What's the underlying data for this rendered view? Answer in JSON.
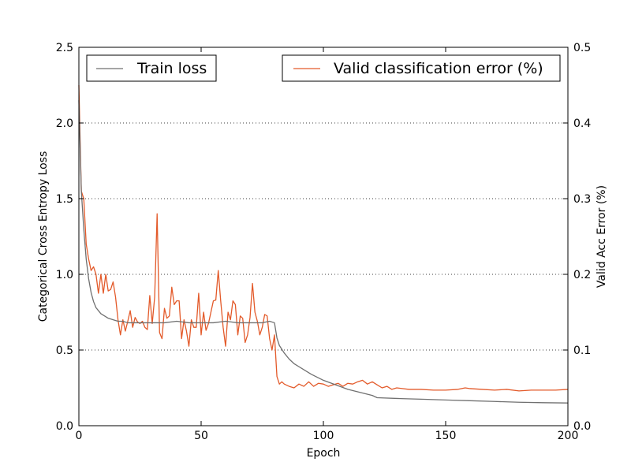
{
  "chart_data": {
    "type": "line",
    "xlabel": "Epoch",
    "ylabel_left": "Categorical Cross Entropy Loss",
    "ylabel_right": "Valid Acc Error (%)",
    "xlim": [
      0,
      200
    ],
    "ylim_left": [
      0.0,
      2.5
    ],
    "ylim_right": [
      0.0,
      0.5
    ],
    "x_ticks": [
      0,
      50,
      100,
      150,
      200
    ],
    "x_tick_labels": [
      "0",
      "50",
      "100",
      "150",
      "200"
    ],
    "y_left_ticks": [
      0.0,
      0.5,
      1.0,
      1.5,
      2.0,
      2.5
    ],
    "y_left_tick_labels": [
      "0.0",
      "0.5",
      "1.0",
      "1.5",
      "2.0",
      "2.5"
    ],
    "y_right_ticks": [
      0.0,
      0.1,
      0.2,
      0.3,
      0.4,
      0.5
    ],
    "y_right_tick_labels": [
      "0.0",
      "0.1",
      "0.2",
      "0.3",
      "0.4",
      "0.5"
    ],
    "grid": "horizontal-dotted",
    "series": [
      {
        "name": "Train loss",
        "axis": "left",
        "color": "#707070",
        "x": [
          0,
          1,
          2,
          3,
          4,
          5,
          6,
          7,
          8,
          9,
          10,
          12,
          14,
          16,
          18,
          20,
          25,
          30,
          35,
          40,
          45,
          50,
          55,
          60,
          65,
          70,
          75,
          78,
          80,
          81,
          82,
          84,
          86,
          88,
          90,
          95,
          100,
          105,
          110,
          115,
          120,
          122,
          130,
          140,
          150,
          160,
          170,
          180,
          190,
          200
        ],
        "values": [
          2.15,
          1.55,
          1.3,
          1.1,
          0.97,
          0.88,
          0.82,
          0.78,
          0.76,
          0.74,
          0.73,
          0.71,
          0.7,
          0.69,
          0.69,
          0.68,
          0.68,
          0.68,
          0.68,
          0.69,
          0.68,
          0.68,
          0.68,
          0.69,
          0.68,
          0.68,
          0.68,
          0.69,
          0.68,
          0.58,
          0.53,
          0.48,
          0.44,
          0.41,
          0.39,
          0.34,
          0.3,
          0.27,
          0.24,
          0.22,
          0.2,
          0.185,
          0.18,
          0.175,
          0.17,
          0.165,
          0.16,
          0.155,
          0.152,
          0.15
        ]
      },
      {
        "name": "Valid classification error (%)",
        "axis": "right",
        "color": "#e35a2a",
        "x": [
          0,
          1,
          2,
          3,
          4,
          5,
          6,
          7,
          8,
          9,
          10,
          11,
          12,
          13,
          14,
          15,
          16,
          17,
          18,
          19,
          20,
          21,
          22,
          23,
          24,
          25,
          26,
          27,
          28,
          29,
          30,
          31,
          32,
          33,
          34,
          35,
          36,
          37,
          38,
          39,
          40,
          41,
          42,
          43,
          44,
          45,
          46,
          47,
          48,
          49,
          50,
          51,
          52,
          53,
          54,
          55,
          56,
          57,
          58,
          59,
          60,
          61,
          62,
          63,
          64,
          65,
          66,
          67,
          68,
          69,
          70,
          71,
          72,
          73,
          74,
          75,
          76,
          77,
          78,
          79,
          80,
          81,
          82,
          83,
          84,
          86,
          88,
          90,
          92,
          94,
          96,
          98,
          100,
          102,
          104,
          106,
          108,
          110,
          112,
          114,
          116,
          118,
          120,
          122,
          124,
          126,
          128,
          130,
          135,
          140,
          145,
          150,
          155,
          158,
          160,
          165,
          170,
          175,
          180,
          185,
          190,
          195,
          200
        ],
        "values": [
          0.45,
          0.31,
          0.3,
          0.24,
          0.22,
          0.205,
          0.21,
          0.2,
          0.175,
          0.2,
          0.175,
          0.2,
          0.178,
          0.18,
          0.19,
          0.17,
          0.14,
          0.12,
          0.14,
          0.125,
          0.138,
          0.152,
          0.13,
          0.143,
          0.137,
          0.135,
          0.138,
          0.13,
          0.127,
          0.172,
          0.135,
          0.17,
          0.28,
          0.123,
          0.115,
          0.155,
          0.142,
          0.145,
          0.183,
          0.16,
          0.165,
          0.165,
          0.115,
          0.14,
          0.125,
          0.105,
          0.14,
          0.13,
          0.13,
          0.175,
          0.12,
          0.15,
          0.126,
          0.135,
          0.15,
          0.165,
          0.166,
          0.205,
          0.165,
          0.13,
          0.105,
          0.15,
          0.14,
          0.165,
          0.16,
          0.12,
          0.145,
          0.142,
          0.11,
          0.12,
          0.143,
          0.188,
          0.15,
          0.138,
          0.12,
          0.13,
          0.147,
          0.145,
          0.115,
          0.1,
          0.12,
          0.065,
          0.055,
          0.058,
          0.055,
          0.052,
          0.05,
          0.055,
          0.052,
          0.058,
          0.052,
          0.056,
          0.055,
          0.052,
          0.054,
          0.056,
          0.052,
          0.056,
          0.055,
          0.058,
          0.06,
          0.055,
          0.058,
          0.054,
          0.05,
          0.052,
          0.048,
          0.05,
          0.048,
          0.048,
          0.047,
          0.047,
          0.048,
          0.05,
          0.049,
          0.048,
          0.047,
          0.048,
          0.046,
          0.047,
          0.047,
          0.047,
          0.048
        ]
      }
    ],
    "legend": [
      {
        "label": "Train loss",
        "placement": "top-left"
      },
      {
        "label": "Valid classification error (%)",
        "placement": "top-right"
      }
    ]
  }
}
